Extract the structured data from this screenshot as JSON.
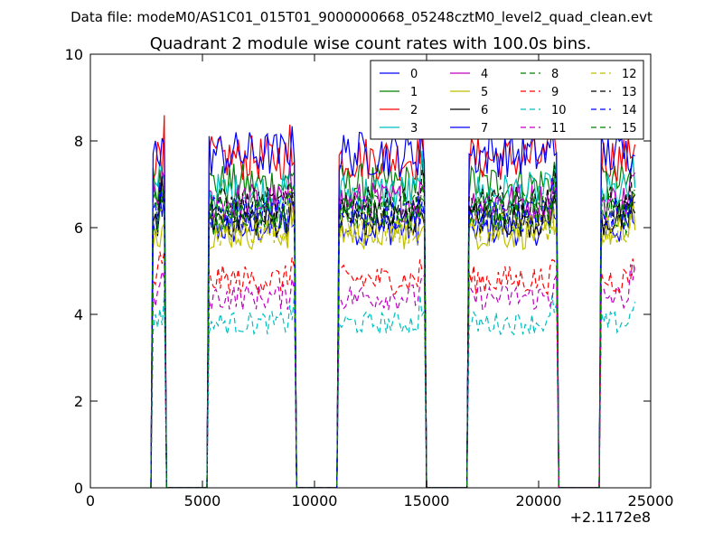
{
  "file_line": "Data file: modeM0/AS1C01_015T01_9000000668_05248cztM0_level2_quad_clean.evt",
  "chart_data": {
    "type": "line",
    "title": "Quadrant 2 module wise count rates with 100.0s bins.",
    "xlabel": "",
    "ylabel": "",
    "x_offset_label": "+2.1172e8",
    "xlim": [
      0,
      25000
    ],
    "ylim": [
      0,
      10
    ],
    "x_ticks": [
      0,
      5000,
      10000,
      15000,
      20000,
      25000
    ],
    "y_ticks": [
      0,
      2,
      4,
      6,
      8,
      10
    ],
    "grid": false,
    "legend_position": "top-right",
    "legend_columns": 4,
    "orbit_segments": [
      [
        2800,
        3300
      ],
      [
        5300,
        9100
      ],
      [
        11100,
        14900
      ],
      [
        16900,
        20800
      ],
      [
        22800,
        24300
      ]
    ],
    "series": [
      {
        "name": "0",
        "color": "#0000ff",
        "style": "solid",
        "level": 6.0
      },
      {
        "name": "1",
        "color": "#008000",
        "style": "solid",
        "level": 7.0
      },
      {
        "name": "2",
        "color": "#ff0000",
        "style": "solid",
        "level": 7.6
      },
      {
        "name": "3",
        "color": "#00bfbf",
        "style": "solid",
        "level": 6.8
      },
      {
        "name": "4",
        "color": "#bf00bf",
        "style": "solid",
        "level": 6.6
      },
      {
        "name": "5",
        "color": "#bfbf00",
        "style": "solid",
        "level": 5.9
      },
      {
        "name": "6",
        "color": "#000000",
        "style": "solid",
        "level": 6.2
      },
      {
        "name": "7",
        "color": "#0000ff",
        "style": "solid",
        "level": 7.7
      },
      {
        "name": "8",
        "color": "#008000",
        "style": "dashed",
        "level": 6.3
      },
      {
        "name": "9",
        "color": "#ff0000",
        "style": "dashed",
        "level": 4.8
      },
      {
        "name": "10",
        "color": "#00bfbf",
        "style": "dashed",
        "level": 3.8
      },
      {
        "name": "11",
        "color": "#bf00bf",
        "style": "dashed",
        "level": 4.4
      },
      {
        "name": "12",
        "color": "#bfbf00",
        "style": "dashed",
        "level": 6.0
      },
      {
        "name": "13",
        "color": "#000000",
        "style": "dashed",
        "level": 6.5
      },
      {
        "name": "14",
        "color": "#0000ff",
        "style": "dashed",
        "level": 6.3
      },
      {
        "name": "15",
        "color": "#008000",
        "style": "dashed",
        "level": 6.4
      }
    ]
  }
}
